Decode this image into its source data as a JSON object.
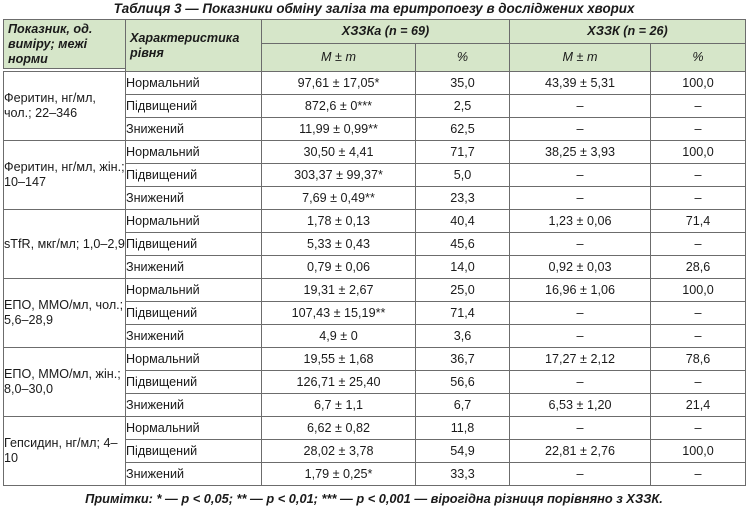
{
  "caption": "Таблиця 3 — Показники обміну заліза та еритропоезу в досліджених хворих",
  "header": {
    "indicator": "Показник, од. виміру; межі норми",
    "level": "Характеристика рівня",
    "group_a": "ХЗЗКа (n = 69)",
    "group_b": "ХЗЗК (n = 26)",
    "mean": "M ± m",
    "pct": "%"
  },
  "groups": [
    {
      "indicator": "Феритин, нг/мл, чол.; 22–346",
      "rows": [
        {
          "level": "Нормальний",
          "a_mean": "97,61 ± 17,05*",
          "a_pct": "35,0",
          "b_mean": "43,39 ± 5,31",
          "b_pct": "100,0"
        },
        {
          "level": "Підвищений",
          "a_mean": "872,6 ± 0***",
          "a_pct": "2,5",
          "b_mean": "–",
          "b_pct": "–"
        },
        {
          "level": "Знижений",
          "a_mean": "11,99 ± 0,99**",
          "a_pct": "62,5",
          "b_mean": "–",
          "b_pct": "–"
        }
      ]
    },
    {
      "indicator": "Феритин, нг/мл, жін.; 10–147",
      "rows": [
        {
          "level": "Нормальний",
          "a_mean": "30,50 ± 4,41",
          "a_pct": "71,7",
          "b_mean": "38,25 ± 3,93",
          "b_pct": "100,0"
        },
        {
          "level": "Підвищений",
          "a_mean": "303,37 ± 99,37*",
          "a_pct": "5,0",
          "b_mean": "–",
          "b_pct": "–"
        },
        {
          "level": "Знижений",
          "a_mean": "7,69 ± 0,49**",
          "a_pct": "23,3",
          "b_mean": "–",
          "b_pct": "–"
        }
      ]
    },
    {
      "indicator": "sTfR, мкг/мл; 1,0–2,9",
      "rows": [
        {
          "level": "Нормальний",
          "a_mean": "1,78 ± 0,13",
          "a_pct": "40,4",
          "b_mean": "1,23 ± 0,06",
          "b_pct": "71,4"
        },
        {
          "level": "Підвищений",
          "a_mean": "5,33 ± 0,43",
          "a_pct": "45,6",
          "b_mean": "–",
          "b_pct": "–"
        },
        {
          "level": "Знижений",
          "a_mean": "0,79 ± 0,06",
          "a_pct": "14,0",
          "b_mean": "0,92 ± 0,03",
          "b_pct": "28,6"
        }
      ]
    },
    {
      "indicator": "ЕПО, ММО/мл, чол.; 5,6–28,9",
      "rows": [
        {
          "level": "Нормальний",
          "a_mean": "19,31 ± 2,67",
          "a_pct": "25,0",
          "b_mean": "16,96 ± 1,06",
          "b_pct": "100,0"
        },
        {
          "level": "Підвищений",
          "a_mean": "107,43 ± 15,19**",
          "a_pct": "71,4",
          "b_mean": "–",
          "b_pct": "–"
        },
        {
          "level": "Знижений",
          "a_mean": "4,9 ± 0",
          "a_pct": "3,6",
          "b_mean": "–",
          "b_pct": "–"
        }
      ]
    },
    {
      "indicator": "ЕПО, ММО/мл, жін.; 8,0–30,0",
      "rows": [
        {
          "level": "Нормальний",
          "a_mean": "19,55 ± 1,68",
          "a_pct": "36,7",
          "b_mean": "17,27 ± 2,12",
          "b_pct": "78,6"
        },
        {
          "level": "Підвищений",
          "a_mean": "126,71 ± 25,40",
          "a_pct": "56,6",
          "b_mean": "–",
          "b_pct": "–"
        },
        {
          "level": "Знижений",
          "a_mean": "6,7 ± 1,1",
          "a_pct": "6,7",
          "b_mean": "6,53 ± 1,20",
          "b_pct": "21,4"
        }
      ]
    },
    {
      "indicator": "Гепсидин, нг/мл; 4–10",
      "rows": [
        {
          "level": "Нормальний",
          "a_mean": "6,62 ± 0,82",
          "a_pct": "11,8",
          "b_mean": "–",
          "b_pct": "–"
        },
        {
          "level": "Підвищений",
          "a_mean": "28,02 ± 3,78",
          "a_pct": "54,9",
          "b_mean": "22,81 ± 2,76",
          "b_pct": "100,0"
        },
        {
          "level": "Знижений",
          "a_mean": "1,79 ± 0,25*",
          "a_pct": "33,3",
          "b_mean": "–",
          "b_pct": "–"
        }
      ]
    }
  ],
  "note": "Примітки: * — p < 0,05; ** — p < 0,01; *** — p < 0,001 — вірогідна різниця порівняно з ХЗЗК."
}
